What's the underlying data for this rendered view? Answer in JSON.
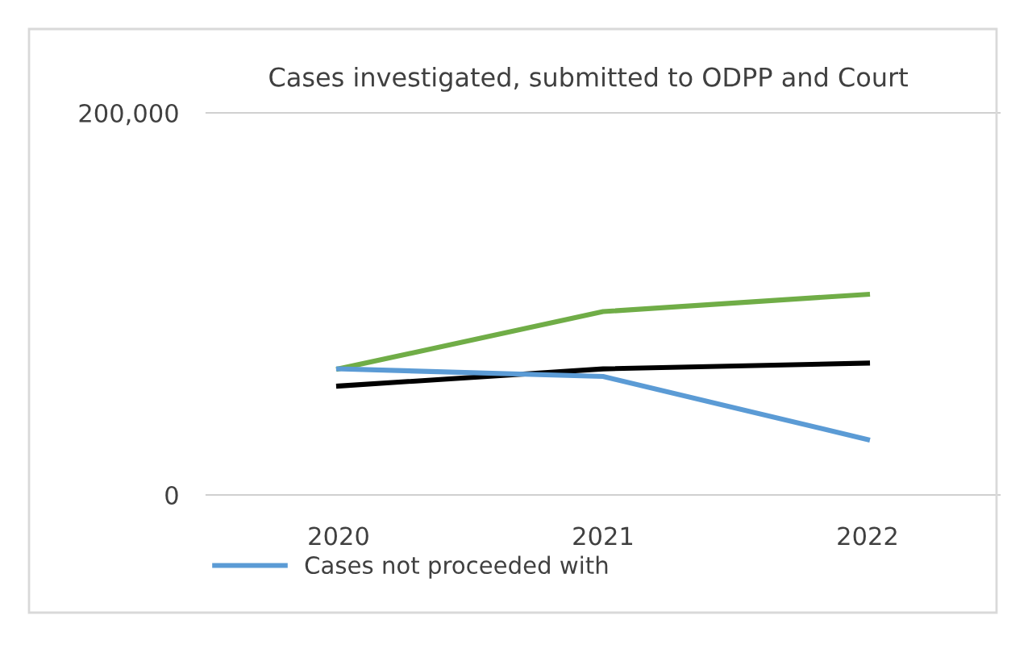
{
  "chart_data": {
    "type": "line",
    "title": "Cases investigated, submitted to ODPP and Court",
    "categories": [
      "2020",
      "2021",
      "2022"
    ],
    "series": [
      {
        "color": "#70ad47",
        "values": [
          66000,
          96000,
          105000
        ]
      },
      {
        "color": "#000000",
        "values": [
          57000,
          66000,
          69000
        ]
      },
      {
        "name": "Cases not proceeded with",
        "color": "#5b9bd5",
        "values": [
          66000,
          62000,
          29000
        ]
      }
    ],
    "ylim": [
      0,
      200000
    ],
    "yticks": [
      {
        "value": 0,
        "label": "0"
      },
      {
        "value": 200000,
        "label": "200,000"
      }
    ],
    "legend": "bottom left",
    "marker": "none",
    "line_style": "solid"
  }
}
